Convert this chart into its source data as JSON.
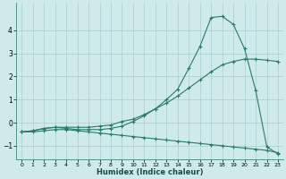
{
  "xlabel": "Humidex (Indice chaleur)",
  "bg_color": "#ceeaea",
  "line_color": "#2a7a6a",
  "grid_color": "#aacece",
  "xlim": [
    -0.5,
    23.5
  ],
  "ylim": [
    -1.6,
    5.2
  ],
  "xticks": [
    0,
    1,
    2,
    3,
    4,
    5,
    6,
    7,
    8,
    9,
    10,
    11,
    12,
    13,
    14,
    15,
    16,
    17,
    18,
    19,
    20,
    21,
    22,
    23
  ],
  "yticks": [
    -1,
    0,
    1,
    2,
    3,
    4
  ],
  "series1_x": [
    0,
    1,
    2,
    3,
    4,
    5,
    6,
    7,
    8,
    9,
    10,
    11,
    12,
    13,
    14,
    15,
    16,
    17,
    18,
    19,
    20,
    21,
    22,
    23
  ],
  "series1_y": [
    -0.4,
    -0.35,
    -0.25,
    -0.2,
    -0.2,
    -0.2,
    -0.2,
    -0.15,
    -0.1,
    0.05,
    0.15,
    0.35,
    0.6,
    0.85,
    1.15,
    1.5,
    1.85,
    2.2,
    2.5,
    2.65,
    2.75,
    2.75,
    2.7,
    2.65
  ],
  "series2_x": [
    0,
    1,
    2,
    3,
    4,
    5,
    6,
    7,
    8,
    9,
    10,
    11,
    12,
    13,
    14,
    15,
    16,
    17,
    18,
    19,
    20,
    21,
    22,
    23
  ],
  "series2_y": [
    -0.4,
    -0.35,
    -0.25,
    -0.2,
    -0.25,
    -0.3,
    -0.3,
    -0.3,
    -0.25,
    -0.15,
    0.05,
    0.3,
    0.6,
    1.0,
    1.45,
    2.35,
    3.3,
    4.55,
    4.6,
    4.25,
    3.2,
    1.4,
    -1.05,
    -1.35
  ],
  "series3_x": [
    0,
    1,
    2,
    3,
    4,
    5,
    6,
    7,
    8,
    9,
    10,
    11,
    12,
    13,
    14,
    15,
    16,
    17,
    18,
    19,
    20,
    21,
    22,
    23
  ],
  "series3_y": [
    -0.4,
    -0.4,
    -0.35,
    -0.3,
    -0.3,
    -0.35,
    -0.4,
    -0.45,
    -0.5,
    -0.55,
    -0.6,
    -0.65,
    -0.7,
    -0.75,
    -0.8,
    -0.85,
    -0.9,
    -0.95,
    -1.0,
    -1.05,
    -1.1,
    -1.15,
    -1.2,
    -1.3
  ]
}
